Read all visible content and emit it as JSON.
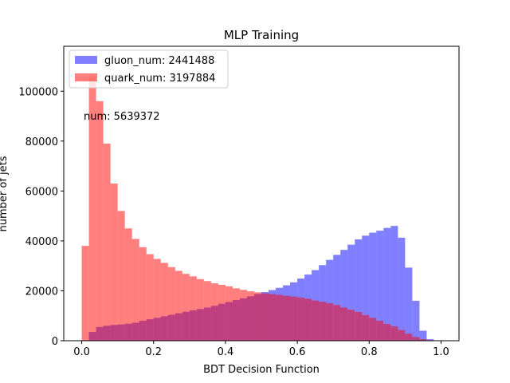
{
  "chart_data": {
    "type": "bar",
    "title": "MLP Training",
    "xlabel": "BDT Decision Function",
    "ylabel": "number of jets",
    "xlim": [
      -0.05,
      1.05
    ],
    "ylim": [
      0,
      118000
    ],
    "xticks": [
      0.0,
      0.2,
      0.4,
      0.6,
      0.8,
      1.0
    ],
    "xtick_labels": [
      "0.0",
      "0.2",
      "0.4",
      "0.6",
      "0.8",
      "1.0"
    ],
    "yticks": [
      0,
      20000,
      40000,
      60000,
      80000,
      100000
    ],
    "ytick_labels": [
      "0",
      "20000",
      "40000",
      "60000",
      "80000",
      "100000"
    ],
    "bin_start": 0.0,
    "bin_width": 0.02,
    "annotation": "num: 5639372",
    "legend_position": "upper-left",
    "series": [
      {
        "name": "gluon_num: 2441488",
        "color": "#0000ff",
        "alpha": 0.5,
        "values": [
          200,
          3500,
          5500,
          6000,
          6300,
          6500,
          6800,
          7200,
          8000,
          8600,
          9200,
          9800,
          10400,
          11000,
          11600,
          12200,
          12700,
          13300,
          14000,
          14800,
          15500,
          16300,
          17000,
          17800,
          18700,
          19500,
          20300,
          21200,
          22200,
          23400,
          24900,
          26500,
          28300,
          30300,
          32400,
          34400,
          36400,
          38500,
          40600,
          42100,
          43300,
          44100,
          45200,
          46000,
          41300,
          29300,
          16000,
          4000,
          600,
          0
        ]
      },
      {
        "name": "quark_num: 3197884",
        "color": "#ff0000",
        "alpha": 0.5,
        "values": [
          38000,
          106000,
          96000,
          79000,
          63000,
          52000,
          45000,
          40800,
          37500,
          34700,
          32800,
          31200,
          29500,
          28000,
          26800,
          25800,
          24700,
          23900,
          23000,
          22400,
          21800,
          21000,
          20400,
          19800,
          19400,
          19000,
          18700,
          18400,
          18000,
          17700,
          17300,
          16800,
          16100,
          15600,
          15000,
          14300,
          13300,
          12400,
          11500,
          10300,
          9200,
          8000,
          6700,
          5800,
          4300,
          2800,
          1500,
          600,
          200,
          0
        ]
      }
    ]
  }
}
